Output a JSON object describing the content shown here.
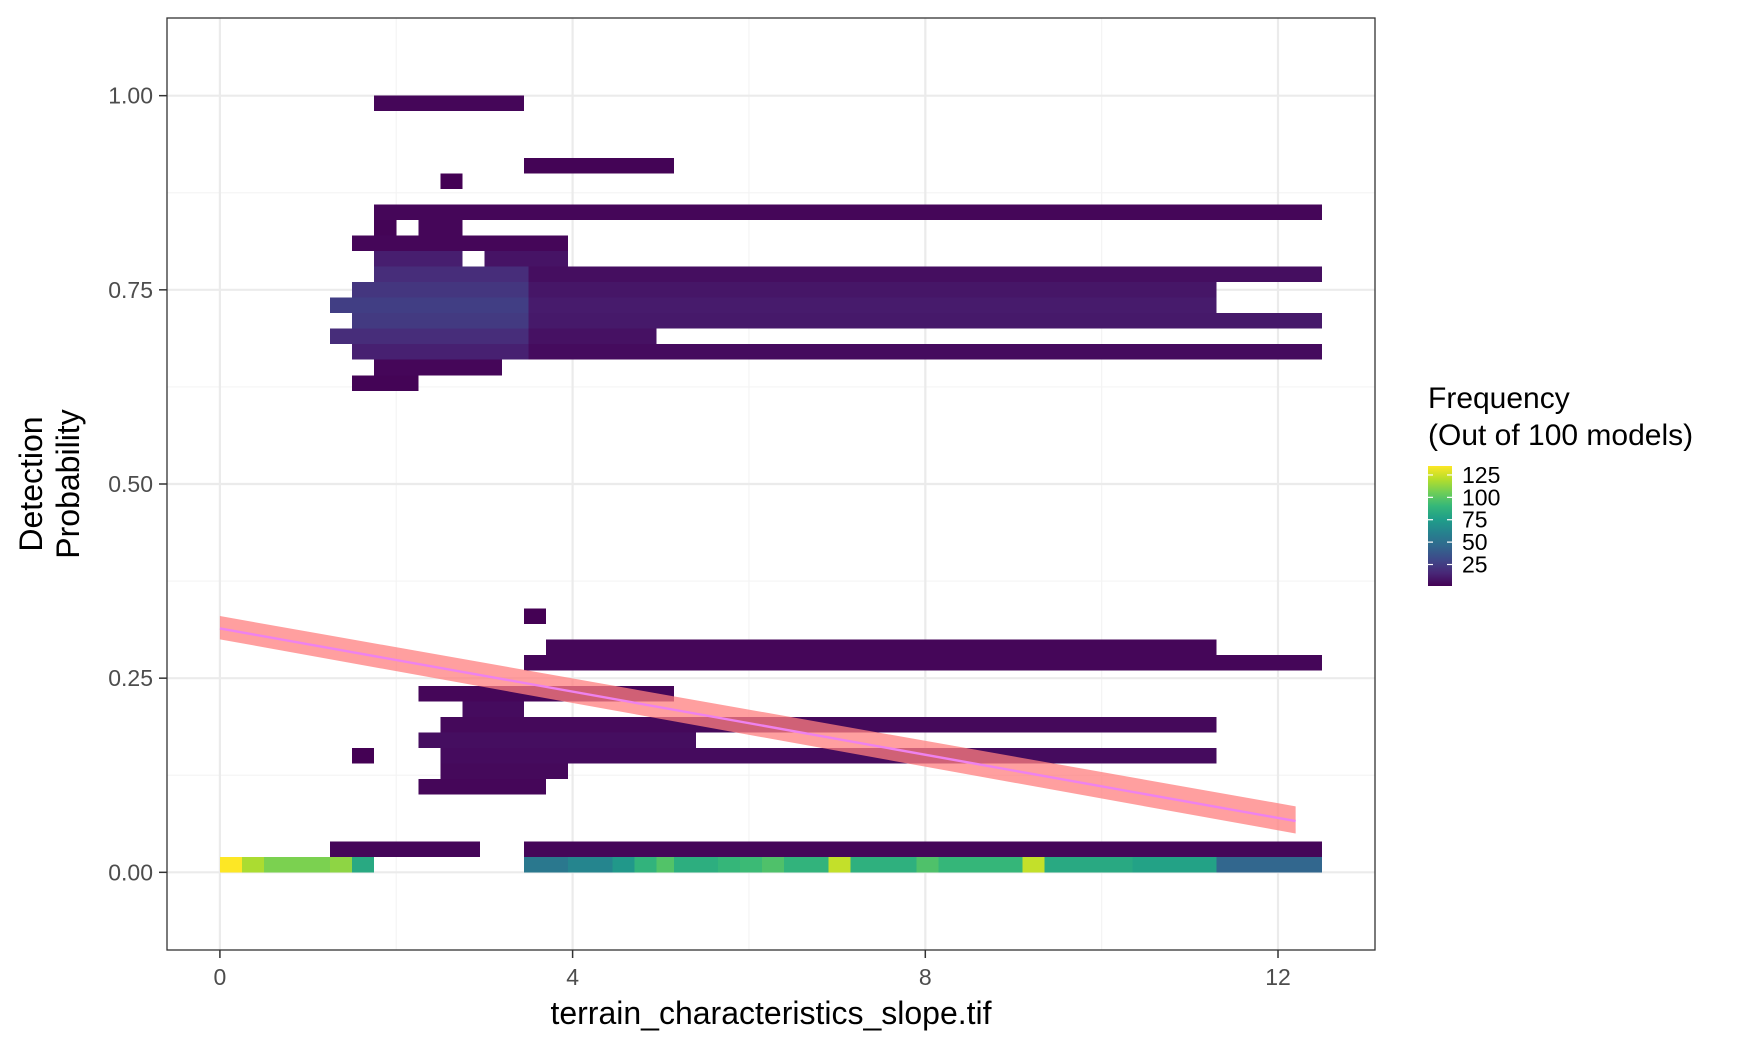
{
  "chart_data": {
    "type": "heatmap",
    "xlabel": "terrain_characteristics_slope.tif",
    "ylabel": [
      "Detection",
      "Probability"
    ],
    "xlim": [
      -0.6,
      13.1
    ],
    "ylim": [
      -0.1,
      1.1
    ],
    "x_ticks": [
      {
        "value": 0,
        "label": "0"
      },
      {
        "value": 4,
        "label": "4"
      },
      {
        "value": 8,
        "label": "8"
      },
      {
        "value": 12,
        "label": "12"
      }
    ],
    "y_ticks": [
      {
        "value": 0.0,
        "label": "0.00"
      },
      {
        "value": 0.25,
        "label": "0.25"
      },
      {
        "value": 0.5,
        "label": "0.50"
      },
      {
        "value": 0.75,
        "label": "0.75"
      },
      {
        "value": 1.0,
        "label": "1.00"
      }
    ],
    "grid": true,
    "colors": {
      "panel_border": "#333333",
      "grid_major": "#ebebeb",
      "grid_minor": "#f4f4f4",
      "trend_line": "#ee82ee",
      "trend_ribbon": "#ff7f7f"
    },
    "legend": {
      "title_line1": "Frequency",
      "title_line2": "(Out of 100 models)",
      "placement": "right",
      "range": [
        1,
        135
      ],
      "ticks": [
        {
          "value": 25,
          "label": "25"
        },
        {
          "value": 50,
          "label": "50"
        },
        {
          "value": 75,
          "label": "75"
        },
        {
          "value": 100,
          "label": "100"
        },
        {
          "value": 125,
          "label": "125"
        }
      ],
      "palette": [
        "#440154",
        "#482878",
        "#3e4989",
        "#31688e",
        "#26828e",
        "#1f9e89",
        "#35b779",
        "#6ece58",
        "#b5de2b",
        "#fde725"
      ]
    },
    "cell_size": {
      "dx": 0.245,
      "dy": 0.02
    },
    "heatmap_rows": [
      {
        "y": 0.99,
        "cells": [
          {
            "x0": 1.75,
            "x1": 3.45,
            "value": 3
          }
        ]
      },
      {
        "y": 0.91,
        "cells": [
          {
            "x0": 3.45,
            "x1": 5.15,
            "value": 2
          }
        ]
      },
      {
        "y": 0.89,
        "cells": [
          {
            "x0": 2.5,
            "x1": 2.75,
            "value": 1
          }
        ]
      },
      {
        "y": 0.85,
        "cells": [
          {
            "x0": 1.75,
            "x1": 12.5,
            "value": 3
          }
        ]
      },
      {
        "y": 0.83,
        "cells": [
          {
            "x0": 1.75,
            "x1": 2.0,
            "value": 2
          },
          {
            "x0": 2.25,
            "x1": 2.75,
            "value": 3
          }
        ]
      },
      {
        "y": 0.81,
        "cells": [
          {
            "x0": 1.5,
            "x1": 3.95,
            "value": 3
          }
        ]
      },
      {
        "y": 0.79,
        "cells": [
          {
            "x0": 1.75,
            "x1": 2.75,
            "value": 12
          },
          {
            "x0": 3.0,
            "x1": 3.95,
            "value": 8
          }
        ]
      },
      {
        "y": 0.77,
        "cells": [
          {
            "x0": 1.75,
            "x1": 3.5,
            "value": 18
          },
          {
            "x0": 3.5,
            "x1": 12.5,
            "value": 6
          }
        ]
      },
      {
        "y": 0.75,
        "cells": [
          {
            "x0": 1.5,
            "x1": 3.5,
            "value": 22
          },
          {
            "x0": 3.5,
            "x1": 11.3,
            "value": 9
          }
        ]
      },
      {
        "y": 0.73,
        "cells": [
          {
            "x0": 1.25,
            "x1": 3.5,
            "value": 26
          },
          {
            "x0": 3.5,
            "x1": 11.3,
            "value": 11
          }
        ]
      },
      {
        "y": 0.71,
        "cells": [
          {
            "x0": 1.5,
            "x1": 3.5,
            "value": 24
          },
          {
            "x0": 3.5,
            "x1": 12.5,
            "value": 10
          }
        ]
      },
      {
        "y": 0.69,
        "cells": [
          {
            "x0": 1.25,
            "x1": 3.5,
            "value": 18
          },
          {
            "x0": 3.5,
            "x1": 4.95,
            "value": 7
          }
        ]
      },
      {
        "y": 0.67,
        "cells": [
          {
            "x0": 1.5,
            "x1": 3.5,
            "value": 13
          },
          {
            "x0": 3.5,
            "x1": 12.5,
            "value": 5
          }
        ]
      },
      {
        "y": 0.65,
        "cells": [
          {
            "x0": 1.75,
            "x1": 3.2,
            "value": 3
          }
        ]
      },
      {
        "y": 0.63,
        "cells": [
          {
            "x0": 1.5,
            "x1": 2.25,
            "value": 2
          }
        ]
      },
      {
        "y": 0.33,
        "cells": [
          {
            "x0": 3.45,
            "x1": 3.7,
            "value": 1
          }
        ]
      },
      {
        "y": 0.29,
        "cells": [
          {
            "x0": 3.7,
            "x1": 11.3,
            "value": 3
          }
        ]
      },
      {
        "y": 0.27,
        "cells": [
          {
            "x0": 3.45,
            "x1": 12.5,
            "value": 3
          }
        ]
      },
      {
        "y": 0.23,
        "cells": [
          {
            "x0": 2.25,
            "x1": 5.15,
            "value": 3
          }
        ]
      },
      {
        "y": 0.21,
        "cells": [
          {
            "x0": 2.75,
            "x1": 3.45,
            "value": 5
          }
        ]
      },
      {
        "y": 0.19,
        "cells": [
          {
            "x0": 2.5,
            "x1": 11.3,
            "value": 4
          }
        ]
      },
      {
        "y": 0.17,
        "cells": [
          {
            "x0": 2.25,
            "x1": 5.4,
            "value": 6
          }
        ]
      },
      {
        "y": 0.15,
        "cells": [
          {
            "x0": 1.5,
            "x1": 1.75,
            "value": 1
          },
          {
            "x0": 2.5,
            "x1": 11.3,
            "value": 5
          }
        ]
      },
      {
        "y": 0.13,
        "cells": [
          {
            "x0": 2.5,
            "x1": 3.95,
            "value": 4
          }
        ]
      },
      {
        "y": 0.11,
        "cells": [
          {
            "x0": 2.25,
            "x1": 3.7,
            "value": 3
          }
        ]
      },
      {
        "y": 0.03,
        "cells": [
          {
            "x0": 1.25,
            "x1": 2.95,
            "value": 3
          },
          {
            "x0": 3.45,
            "x1": 12.5,
            "value": 3
          }
        ]
      },
      {
        "y": 0.01,
        "cells": [
          {
            "x0": 0.0,
            "x1": 0.25,
            "value": 135
          },
          {
            "x0": 0.25,
            "x1": 0.5,
            "value": 118
          },
          {
            "x0": 0.5,
            "x1": 1.25,
            "value": 108
          },
          {
            "x0": 1.25,
            "x1": 1.5,
            "value": 112
          },
          {
            "x0": 1.5,
            "x1": 1.75,
            "value": 82
          },
          {
            "x0": 3.45,
            "x1": 3.95,
            "value": 55
          },
          {
            "x0": 3.95,
            "x1": 4.45,
            "value": 62
          },
          {
            "x0": 4.45,
            "x1": 4.7,
            "value": 72
          },
          {
            "x0": 4.7,
            "x1": 4.95,
            "value": 88
          },
          {
            "x0": 4.95,
            "x1": 5.15,
            "value": 98
          },
          {
            "x0": 5.15,
            "x1": 5.65,
            "value": 85
          },
          {
            "x0": 5.65,
            "x1": 5.9,
            "value": 90
          },
          {
            "x0": 5.9,
            "x1": 6.15,
            "value": 92
          },
          {
            "x0": 6.15,
            "x1": 6.4,
            "value": 97
          },
          {
            "x0": 6.4,
            "x1": 6.9,
            "value": 88
          },
          {
            "x0": 6.9,
            "x1": 7.15,
            "value": 123
          },
          {
            "x0": 7.15,
            "x1": 7.9,
            "value": 86
          },
          {
            "x0": 7.9,
            "x1": 8.15,
            "value": 97
          },
          {
            "x0": 8.15,
            "x1": 9.1,
            "value": 90
          },
          {
            "x0": 9.1,
            "x1": 9.35,
            "value": 123
          },
          {
            "x0": 9.35,
            "x1": 10.35,
            "value": 82
          },
          {
            "x0": 10.35,
            "x1": 11.3,
            "value": 78
          },
          {
            "x0": 11.3,
            "x1": 12.5,
            "value": 45
          }
        ]
      }
    ],
    "trend": {
      "x": [
        0.0,
        12.2
      ],
      "fit": [
        0.314,
        0.066
      ],
      "lower": [
        0.3,
        0.05
      ],
      "upper": [
        0.33,
        0.085
      ]
    }
  }
}
